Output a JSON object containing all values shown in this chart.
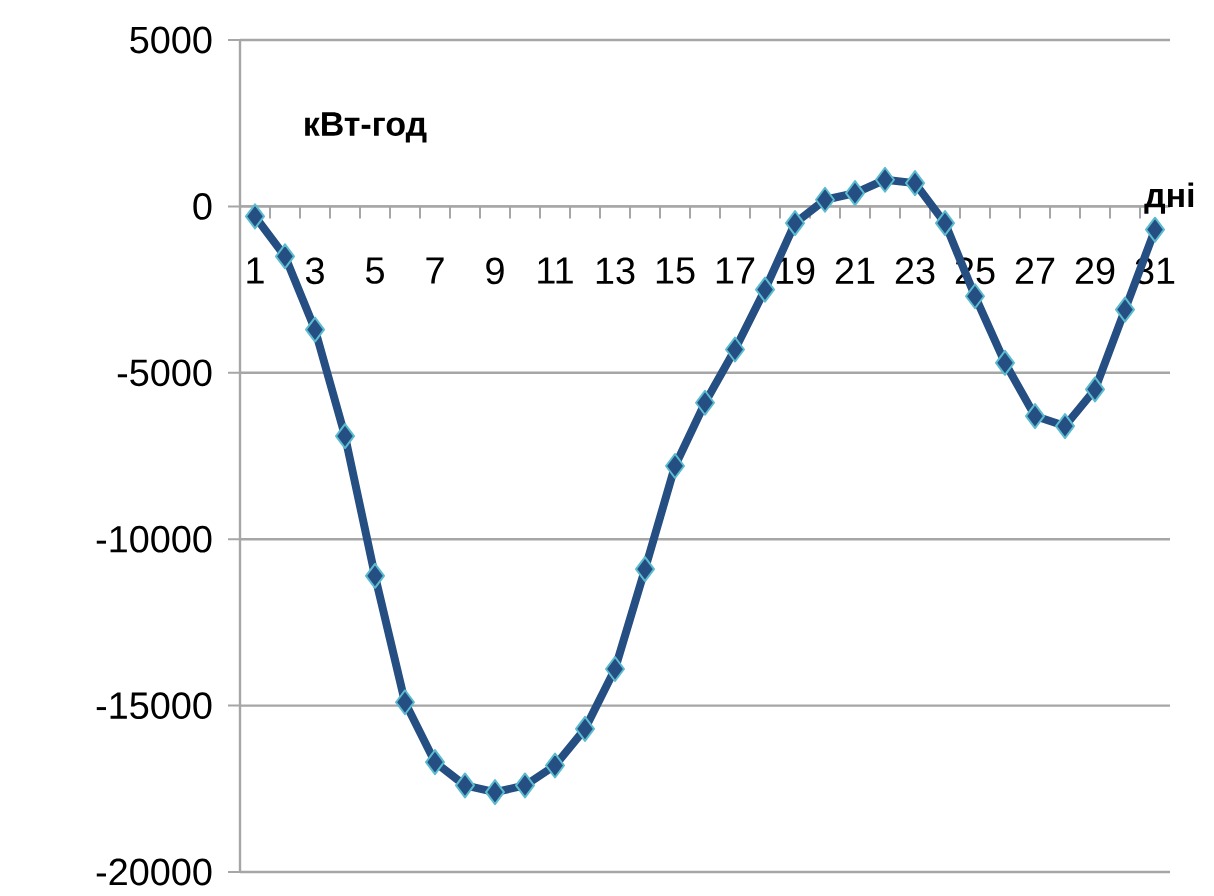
{
  "chart_data": {
    "type": "line",
    "xlabel": "дні",
    "ylabel": "кВт-год",
    "categories": [
      "1",
      null,
      "3",
      null,
      "5",
      null,
      "7",
      null,
      "9",
      null,
      "11",
      null,
      "13",
      null,
      "15",
      null,
      "17",
      null,
      "19",
      null,
      "21",
      null,
      "23",
      null,
      "25",
      null,
      "27",
      null,
      "29",
      null,
      "31"
    ],
    "series": [
      {
        "color": "#254e82",
        "values": [
          -300,
          -1500,
          -3700,
          -6900,
          -11100,
          -14900,
          -16700,
          -17400,
          -17600,
          -17400,
          -16800,
          -15700,
          -13900,
          -10900,
          -7800,
          -5900,
          -4300,
          -2500,
          -500,
          200,
          400,
          800,
          700,
          -500,
          -2700,
          -4700,
          -6300,
          -6600,
          -5500,
          -3100,
          -700
        ]
      }
    ],
    "ylim": [
      -20000,
      5000
    ],
    "yticks": [
      -20000,
      -15000,
      -10000,
      -5000,
      0,
      5000
    ],
    "grid": "y",
    "legend": false,
    "marker": "diamond",
    "line_style": "solid"
  }
}
